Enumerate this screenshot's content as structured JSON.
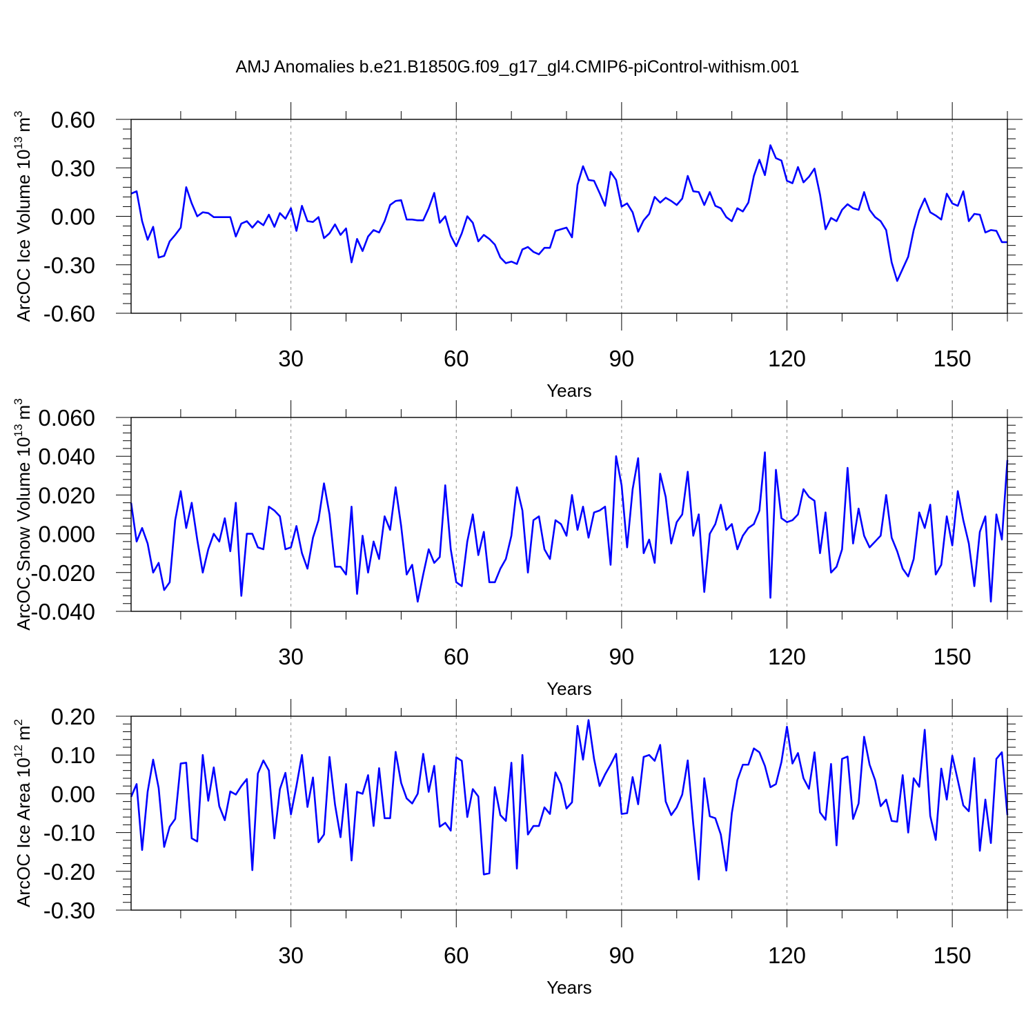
{
  "title": "AMJ Anomalies b.e21.B1850G.f09_g17_gl4.CMIP6-piControl-withism.001",
  "colors": {
    "line": "#0000ff",
    "axis": "#000000",
    "grid": "#888888"
  },
  "chart_data": [
    {
      "type": "line",
      "ylabel_main": "ArcOC Ice Volume 10",
      "ylabel_exp": "13",
      "ylabel_unit": "m",
      "ylabel_unit_exp": "3",
      "xlabel": "Years",
      "xlim": [
        1,
        160
      ],
      "ylim": [
        -0.6,
        0.6
      ],
      "yticks": [
        -0.6,
        -0.3,
        0.0,
        0.3,
        0.6
      ],
      "ytick_labels": [
        "-0.60",
        "-0.30",
        "0.00",
        "0.30",
        "0.60"
      ],
      "xticks": [
        30,
        60,
        90,
        120,
        150
      ],
      "xtick_labels": [
        "30",
        "60",
        "90",
        "120",
        "150"
      ],
      "x_start": 1,
      "values": [
        0.14,
        0.155,
        -0.03,
        -0.145,
        -0.065,
        -0.255,
        -0.245,
        -0.155,
        -0.115,
        -0.07,
        0.18,
        0.08,
        0.0,
        0.025,
        0.02,
        -0.005,
        -0.005,
        -0.005,
        -0.005,
        -0.125,
        -0.045,
        -0.03,
        -0.07,
        -0.03,
        -0.055,
        0.01,
        -0.065,
        0.02,
        -0.015,
        0.05,
        -0.09,
        0.065,
        -0.03,
        -0.035,
        -0.005,
        -0.135,
        -0.105,
        -0.05,
        -0.115,
        -0.075,
        -0.285,
        -0.14,
        -0.215,
        -0.125,
        -0.085,
        -0.1,
        -0.03,
        0.07,
        0.095,
        0.1,
        -0.02,
        -0.02,
        -0.025,
        -0.025,
        0.05,
        0.145,
        -0.04,
        0.0,
        -0.12,
        -0.185,
        -0.105,
        0.0,
        -0.04,
        -0.155,
        -0.115,
        -0.14,
        -0.175,
        -0.255,
        -0.29,
        -0.28,
        -0.295,
        -0.205,
        -0.19,
        -0.22,
        -0.235,
        -0.195,
        -0.195,
        -0.09,
        -0.08,
        -0.07,
        -0.13,
        0.195,
        0.31,
        0.225,
        0.22,
        0.145,
        0.065,
        0.275,
        0.225,
        0.06,
        0.08,
        0.025,
        -0.095,
        -0.025,
        0.015,
        0.12,
        0.085,
        0.115,
        0.095,
        0.07,
        0.11,
        0.25,
        0.155,
        0.15,
        0.07,
        0.15,
        0.065,
        0.05,
        -0.005,
        -0.03,
        0.05,
        0.03,
        0.085,
        0.25,
        0.35,
        0.255,
        0.44,
        0.36,
        0.345,
        0.22,
        0.205,
        0.305,
        0.21,
        0.245,
        0.295,
        0.135,
        -0.08,
        -0.01,
        -0.03,
        0.04,
        0.075,
        0.05,
        0.04,
        0.15,
        0.04,
        -0.005,
        -0.03,
        -0.085,
        -0.285,
        -0.4,
        -0.325,
        -0.25,
        -0.085,
        0.035,
        0.11,
        0.025,
        0.005,
        -0.02,
        0.14,
        0.08,
        0.065,
        0.155,
        -0.03,
        0.015,
        0.01,
        -0.1,
        -0.085,
        -0.09,
        -0.16,
        -0.16
      ]
    },
    {
      "type": "line",
      "ylabel_main": "ArcOC Snow Volume 10",
      "ylabel_exp": "13",
      "ylabel_unit": "m",
      "ylabel_unit_exp": "3",
      "xlabel": "Years",
      "xlim": [
        1,
        160
      ],
      "ylim": [
        -0.04,
        0.06
      ],
      "yticks": [
        -0.04,
        -0.02,
        0.0,
        0.02,
        0.04,
        0.06
      ],
      "ytick_labels": [
        "-0.040",
        "-0.020",
        "0.000",
        "0.020",
        "0.040",
        "0.060"
      ],
      "xticks": [
        30,
        60,
        90,
        120,
        150
      ],
      "xtick_labels": [
        "30",
        "60",
        "90",
        "120",
        "150"
      ],
      "x_start": 1,
      "values": [
        0.016,
        -0.004,
        0.003,
        -0.005,
        -0.02,
        -0.015,
        -0.029,
        -0.025,
        0.007,
        0.022,
        0.003,
        0.016,
        -0.003,
        -0.02,
        -0.008,
        0.0,
        -0.004,
        0.008,
        -0.009,
        0.016,
        -0.032,
        0.0,
        0.0,
        -0.007,
        -0.008,
        0.014,
        0.012,
        0.009,
        -0.008,
        -0.007,
        0.004,
        -0.01,
        -0.018,
        -0.002,
        0.007,
        0.026,
        0.01,
        -0.017,
        -0.017,
        -0.021,
        0.014,
        -0.031,
        -0.001,
        -0.02,
        -0.004,
        -0.013,
        0.009,
        0.002,
        0.024,
        0.004,
        -0.021,
        -0.016,
        -0.035,
        -0.021,
        -0.008,
        -0.015,
        -0.012,
        0.025,
        -0.008,
        -0.025,
        -0.027,
        -0.004,
        0.01,
        -0.011,
        0.001,
        -0.025,
        -0.025,
        -0.018,
        -0.013,
        -0.001,
        0.024,
        0.012,
        -0.02,
        0.007,
        0.009,
        -0.008,
        -0.013,
        0.007,
        0.005,
        -0.001,
        0.02,
        0.002,
        0.014,
        -0.002,
        0.011,
        0.012,
        0.014,
        -0.016,
        0.04,
        0.025,
        -0.007,
        0.023,
        0.039,
        -0.01,
        -0.003,
        -0.015,
        0.031,
        0.019,
        -0.005,
        0.006,
        0.01,
        0.032,
        -0.001,
        0.01,
        -0.03,
        0.0,
        0.005,
        0.015,
        0.002,
        0.005,
        -0.008,
        -0.001,
        0.003,
        0.005,
        0.012,
        0.042,
        -0.033,
        0.033,
        0.008,
        0.006,
        0.007,
        0.01,
        0.023,
        0.019,
        0.017,
        -0.01,
        0.011,
        -0.02,
        -0.017,
        -0.008,
        0.034,
        -0.005,
        0.013,
        -0.001,
        -0.007,
        -0.004,
        -0.001,
        0.02,
        -0.002,
        -0.009,
        -0.018,
        -0.022,
        -0.013,
        0.011,
        0.003,
        0.015,
        -0.021,
        -0.016,
        0.009,
        -0.006,
        0.022,
        0.007,
        -0.005,
        -0.027,
        0.001,
        0.009,
        -0.035,
        0.01,
        -0.003,
        0.038
      ]
    },
    {
      "type": "line",
      "ylabel_main": "ArcOC Ice Area 10",
      "ylabel_exp": "12",
      "ylabel_unit": "m",
      "ylabel_unit_exp": "2",
      "xlabel": "Years",
      "xlim": [
        1,
        160
      ],
      "ylim": [
        -0.3,
        0.2
      ],
      "yticks": [
        -0.3,
        -0.2,
        -0.1,
        0.0,
        0.1,
        0.2
      ],
      "ytick_labels": [
        "-0.30",
        "-0.20",
        "-0.10",
        "0.00",
        "0.10",
        "0.20"
      ],
      "xticks": [
        30,
        60,
        90,
        120,
        150
      ],
      "xtick_labels": [
        "30",
        "60",
        "90",
        "120",
        "150"
      ],
      "x_start": 1,
      "values": [
        -0.008,
        0.025,
        -0.145,
        0.005,
        0.088,
        0.015,
        -0.137,
        -0.085,
        -0.065,
        0.078,
        0.08,
        -0.115,
        -0.123,
        0.1,
        -0.018,
        0.068,
        -0.032,
        -0.068,
        0.006,
        -0.002,
        0.02,
        0.038,
        -0.197,
        0.052,
        0.086,
        0.06,
        -0.115,
        0.012,
        0.054,
        -0.053,
        0.02,
        0.1,
        -0.034,
        0.042,
        -0.125,
        -0.105,
        0.095,
        -0.028,
        -0.112,
        0.025,
        -0.172,
        0.005,
        0.0,
        0.048,
        -0.083,
        0.066,
        -0.063,
        -0.063,
        0.108,
        0.028,
        -0.012,
        -0.025,
        0.0,
        0.103,
        0.005,
        0.072,
        -0.085,
        -0.075,
        -0.095,
        0.094,
        0.085,
        -0.06,
        0.012,
        -0.007,
        -0.208,
        -0.205,
        0.017,
        -0.055,
        -0.07,
        0.08,
        -0.193,
        0.1,
        -0.105,
        -0.083,
        -0.083,
        -0.035,
        -0.052,
        0.055,
        0.025,
        -0.038,
        -0.022,
        0.175,
        0.088,
        0.19,
        0.09,
        0.02,
        0.05,
        0.075,
        0.103,
        -0.052,
        -0.05,
        0.043,
        -0.027,
        0.095,
        0.1,
        0.085,
        0.126,
        -0.02,
        -0.055,
        -0.035,
        -0.002,
        0.086,
        -0.078,
        -0.221,
        0.04,
        -0.058,
        -0.063,
        -0.105,
        -0.198,
        -0.05,
        0.035,
        0.075,
        0.075,
        0.117,
        0.107,
        0.072,
        0.017,
        0.025,
        0.082,
        0.173,
        0.078,
        0.105,
        0.04,
        0.013,
        0.107,
        -0.048,
        -0.067,
        0.077,
        -0.133,
        0.09,
        0.096,
        -0.065,
        -0.025,
        0.147,
        0.075,
        0.035,
        -0.032,
        -0.015,
        -0.07,
        -0.072,
        0.048,
        -0.1,
        0.04,
        0.018,
        0.165,
        -0.057,
        -0.119,
        0.065,
        -0.015,
        0.098,
        0.035,
        -0.03,
        -0.045,
        0.092,
        -0.147,
        -0.015,
        -0.127,
        0.09,
        0.107,
        -0.055
      ]
    }
  ]
}
